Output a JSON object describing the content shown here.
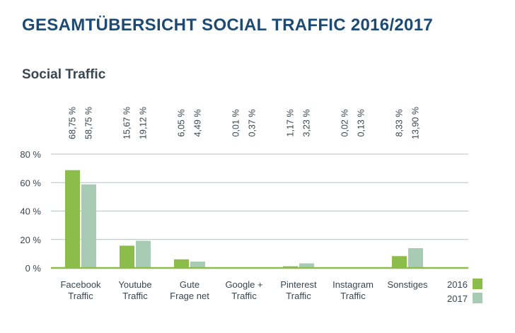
{
  "header": {
    "title": "GESAMTÜBERSICHT SOCIAL TRAFFIC 2016/2017"
  },
  "chart_data": {
    "type": "bar",
    "title": "Social Traffic",
    "categories": [
      [
        "Facebook",
        "Traffic"
      ],
      [
        "Youtube",
        "Traffic"
      ],
      [
        "Gute",
        "Frage net"
      ],
      [
        "Google +",
        "Traffic"
      ],
      [
        "Pinterest",
        "Traffic"
      ],
      [
        "Instagram",
        "Traffic"
      ],
      [
        "Sonstiges"
      ]
    ],
    "series": [
      {
        "name": "2016",
        "color": "#8cbd4a",
        "values": [
          68.75,
          15.67,
          6.05,
          0.01,
          1.17,
          0.02,
          8.33
        ],
        "labels": [
          "68,75 %",
          "15,67 %",
          "6,05 %",
          "0,01 %",
          "1,17 %",
          "0,02 %",
          "8,33 %"
        ]
      },
      {
        "name": "2017",
        "color": "#a8cbb4",
        "values": [
          58.75,
          19.12,
          4.49,
          0.37,
          3.23,
          0.13,
          13.9
        ],
        "labels": [
          "58,75 %",
          "19,12 %",
          "4,49 %",
          "0,37 %",
          "3,23 %",
          "0,13 %",
          "13,90 %"
        ]
      }
    ],
    "ylim": [
      0,
      80
    ],
    "yticks": [
      0,
      20,
      40,
      60,
      80
    ],
    "ytick_labels": [
      "0 %",
      "20 %",
      "40 %",
      "60 %",
      "80 %"
    ],
    "grid": true,
    "legend": "bottom-right",
    "xlabel": "",
    "ylabel": ""
  }
}
